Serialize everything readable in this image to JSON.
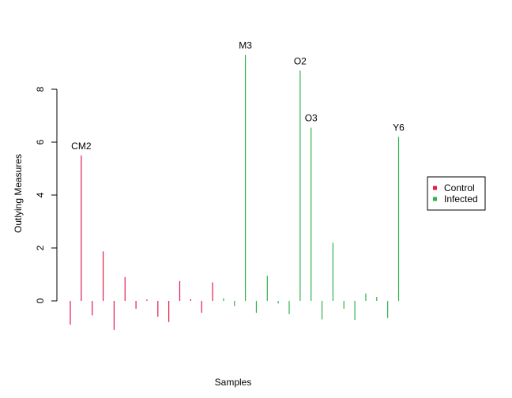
{
  "chart_data": {
    "type": "bar",
    "xlabel": "Samples",
    "ylabel": "Outlying Measures",
    "ylim": [
      -1.2,
      9.3
    ],
    "yticks": [
      0,
      2,
      4,
      6,
      8
    ],
    "legend": {
      "placement": "right",
      "entries": [
        {
          "name": "Control",
          "color": "#e41a4f"
        },
        {
          "name": "Infected",
          "color": "#2eb34a"
        }
      ]
    },
    "series": [
      {
        "name": "Control",
        "color": "#e41a4f",
        "values": [
          -0.9,
          5.5,
          -0.55,
          1.87,
          -1.1,
          0.9,
          -0.3,
          0.05,
          -0.6,
          -0.8,
          0.75,
          0.07,
          -0.45,
          0.7
        ]
      },
      {
        "name": "Infected",
        "color": "#2eb34a",
        "values": [
          0.1,
          -0.2,
          9.3,
          -0.45,
          0.95,
          -0.1,
          -0.5,
          8.7,
          6.55,
          -0.7,
          2.2,
          -0.3,
          -0.72,
          0.28,
          0.15,
          -0.65,
          6.2
        ]
      }
    ],
    "annotations": [
      {
        "label": "CM2",
        "series": 0,
        "index": 1
      },
      {
        "label": "M3",
        "series": 1,
        "index": 2
      },
      {
        "label": "O2",
        "series": 1,
        "index": 7
      },
      {
        "label": "O3",
        "series": 1,
        "index": 8
      },
      {
        "label": "Y6",
        "series": 1,
        "index": 16
      }
    ]
  }
}
